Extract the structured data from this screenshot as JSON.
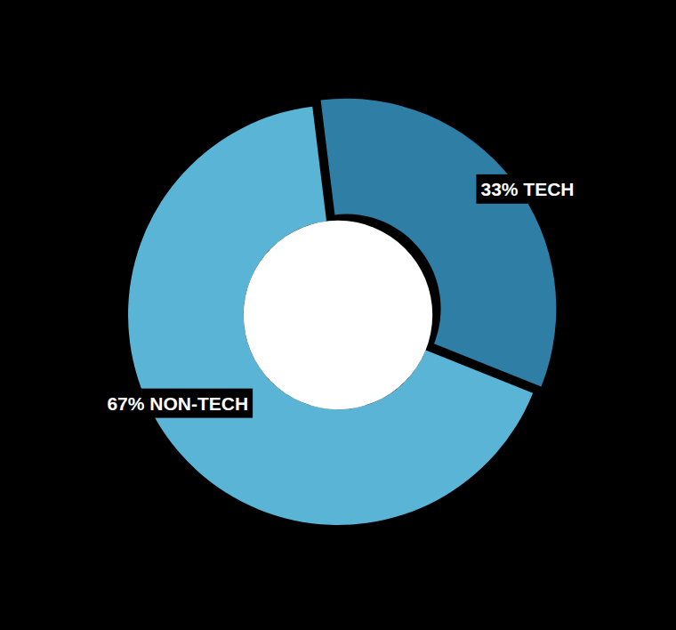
{
  "chart_data": {
    "type": "pie",
    "values": [
      33,
      67
    ],
    "value_labels": [
      "33% TECH",
      "67% NON-TECH"
    ],
    "colors": [
      "#2e7ea6",
      "#5ab4d6"
    ],
    "data_labels": true
  }
}
